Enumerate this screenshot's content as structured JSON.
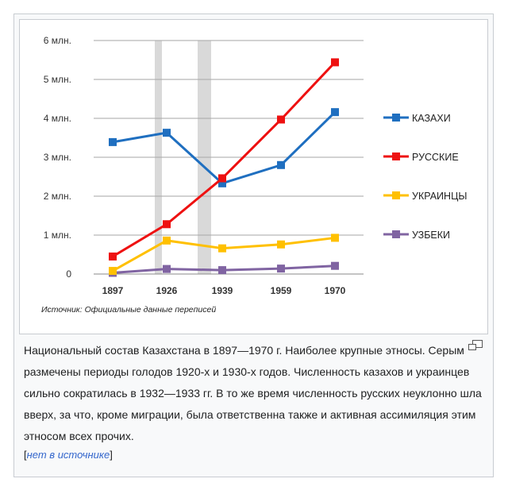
{
  "chart_data": {
    "type": "line",
    "categories": [
      "1897",
      "1926",
      "1939",
      "1959",
      "1970"
    ],
    "y_tick_labels": [
      "0",
      "1 млн.",
      "2 млн.",
      "3 млн.",
      "4 млн.",
      "5 млн.",
      "6 млн."
    ],
    "ylim": [
      0,
      6
    ],
    "grid": true,
    "legend_position": "right",
    "series": [
      {
        "name": "КАЗАХИ",
        "color": "#1f6fc0",
        "values": [
          3.39,
          3.63,
          2.33,
          2.8,
          4.16
        ]
      },
      {
        "name": "РУССКИЕ",
        "color": "#ee1111",
        "values": [
          0.45,
          1.28,
          2.46,
          3.97,
          5.44
        ]
      },
      {
        "name": "УКРАИНЦЫ",
        "color": "#ffc000",
        "values": [
          0.08,
          0.86,
          0.66,
          0.76,
          0.93
        ]
      },
      {
        "name": "УЗБЕКИ",
        "color": "#8064a2",
        "values": [
          0.03,
          0.13,
          0.1,
          0.14,
          0.21
        ]
      }
    ],
    "shaded_periods": [
      "1920-е",
      "1930-е"
    ],
    "source_note": "Источник: Официальные данные переписей"
  },
  "caption": {
    "text": "Национальный состав Казахстана в 1897—1970 г. Наиболее крупные этносы. Серым размечены периоды голодов 1920-х и 1930-х годов. Численность казахов и украинцев сильно сократилась в 1932—1933 гг. В то же время численность русских неуклонно шла вверх, за что, кроме миграции, была ответственна также и активная ассимиляция этим этносом всех прочих.",
    "citation_open": "[",
    "citation_link": "нет в источнике",
    "citation_close": "]"
  },
  "icons": {
    "magnify": "magnify-icon"
  }
}
